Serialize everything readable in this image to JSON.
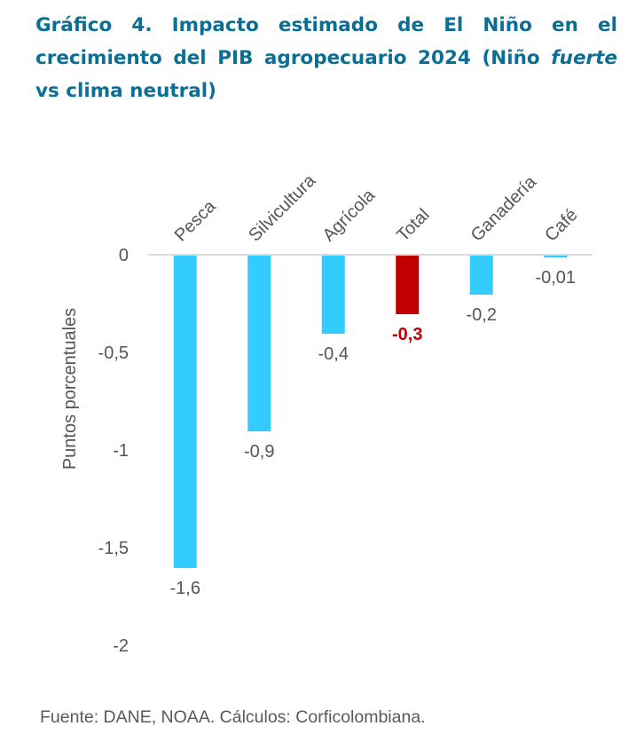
{
  "title": {
    "part1": "Gráfico 4. Impacto estimado de El Niño en el crecimiento del PIB agropecuario 2024 (Niño ",
    "italic": "fuerte",
    "part2": " vs clima neutral)"
  },
  "source": "Fuente: DANE, NOAA. Cálculos: Corficolombiana.",
  "colors": {
    "bar": "#33ccff",
    "highlight": "#c00000",
    "title": "#0b6e95"
  },
  "chart_data": {
    "type": "bar",
    "title": "Gráfico 4. Impacto estimado de El Niño en el crecimiento del PIB agropecuario 2024 (Niño fuerte vs clima neutral)",
    "xlabel": "",
    "ylabel": "Puntos porcentuales",
    "categories": [
      "Pesca",
      "Silvicultura",
      "Agrícola",
      "Total",
      "Ganadería",
      "Café"
    ],
    "values": [
      -1.6,
      -0.9,
      -0.4,
      -0.3,
      -0.2,
      -0.01
    ],
    "data_labels": [
      "-1,6",
      "-0,9",
      "-0,4",
      "-0,3",
      "-0,2",
      "-0,01"
    ],
    "highlight": [
      false,
      false,
      false,
      true,
      false,
      false
    ],
    "ylim": [
      -2,
      0
    ],
    "yticks": [
      0,
      -0.5,
      -1,
      -1.5,
      -2
    ],
    "ytick_labels": [
      "0",
      "-0,5",
      "-1",
      "-1,5",
      "-2"
    ],
    "grid": false,
    "legend": "none",
    "x_axis_position": "top"
  }
}
